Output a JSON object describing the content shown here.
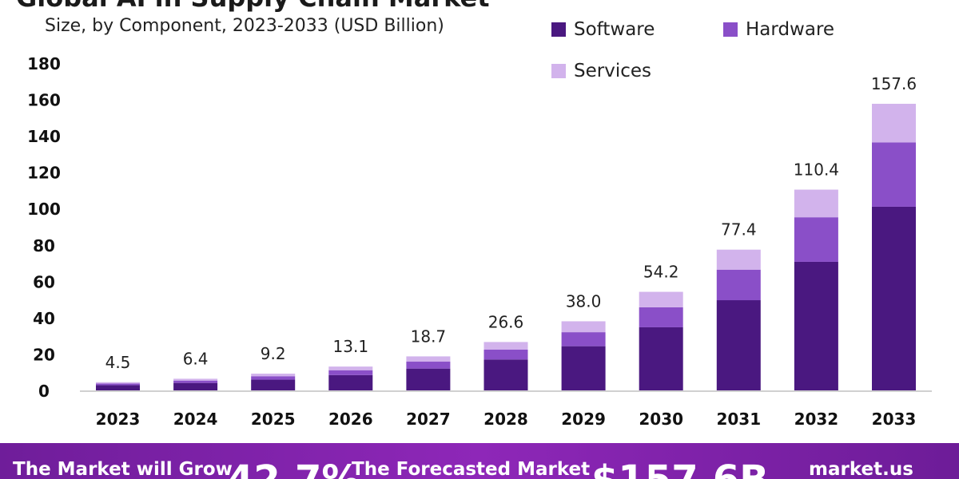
{
  "header": {
    "title": "Global AI in Supply Chain Market",
    "subtitle": "Size, by Component, 2023-2033 (USD Billion)"
  },
  "legend": [
    {
      "label": "Software",
      "color": "#4a1880"
    },
    {
      "label": "Hardware",
      "color": "#8a4fc8"
    },
    {
      "label": "Services",
      "color": "#d2b3ec"
    }
  ],
  "chart_data": {
    "type": "bar",
    "stacked": true,
    "categories": [
      "2023",
      "2024",
      "2025",
      "2026",
      "2027",
      "2028",
      "2029",
      "2030",
      "2031",
      "2032",
      "2033"
    ],
    "series": [
      {
        "name": "Software",
        "color": "#4a1880",
        "values": [
          2.9,
          4.1,
          5.9,
          8.4,
          12.0,
          17.0,
          24.3,
          34.7,
          49.6,
          70.7,
          101.0
        ]
      },
      {
        "name": "Hardware",
        "color": "#8a4fc8",
        "values": [
          0.9,
          1.3,
          1.9,
          2.7,
          3.8,
          5.4,
          7.7,
          11.0,
          16.8,
          24.5,
          35.4
        ]
      },
      {
        "name": "Services",
        "color": "#d2b3ec",
        "values": [
          0.7,
          1.0,
          1.4,
          2.0,
          2.9,
          4.2,
          6.0,
          8.5,
          11.0,
          15.2,
          21.2
        ]
      }
    ],
    "totals": [
      "4.5",
      "6.4",
      "9.2",
      "13.1",
      "18.7",
      "26.6",
      "38.0",
      "54.2",
      "77.4",
      "110.4",
      "157.6"
    ],
    "yticks": [
      0,
      20,
      40,
      60,
      80,
      100,
      120,
      140,
      160,
      180
    ],
    "ylim": [
      0,
      180
    ],
    "grid": false,
    "legend_position": "top-right"
  },
  "banner": {
    "text1": "The Market will Grow",
    "cagr": "42.7%",
    "text2": "The Forecasted Market",
    "size": "$157.6B",
    "source": "market.us"
  }
}
